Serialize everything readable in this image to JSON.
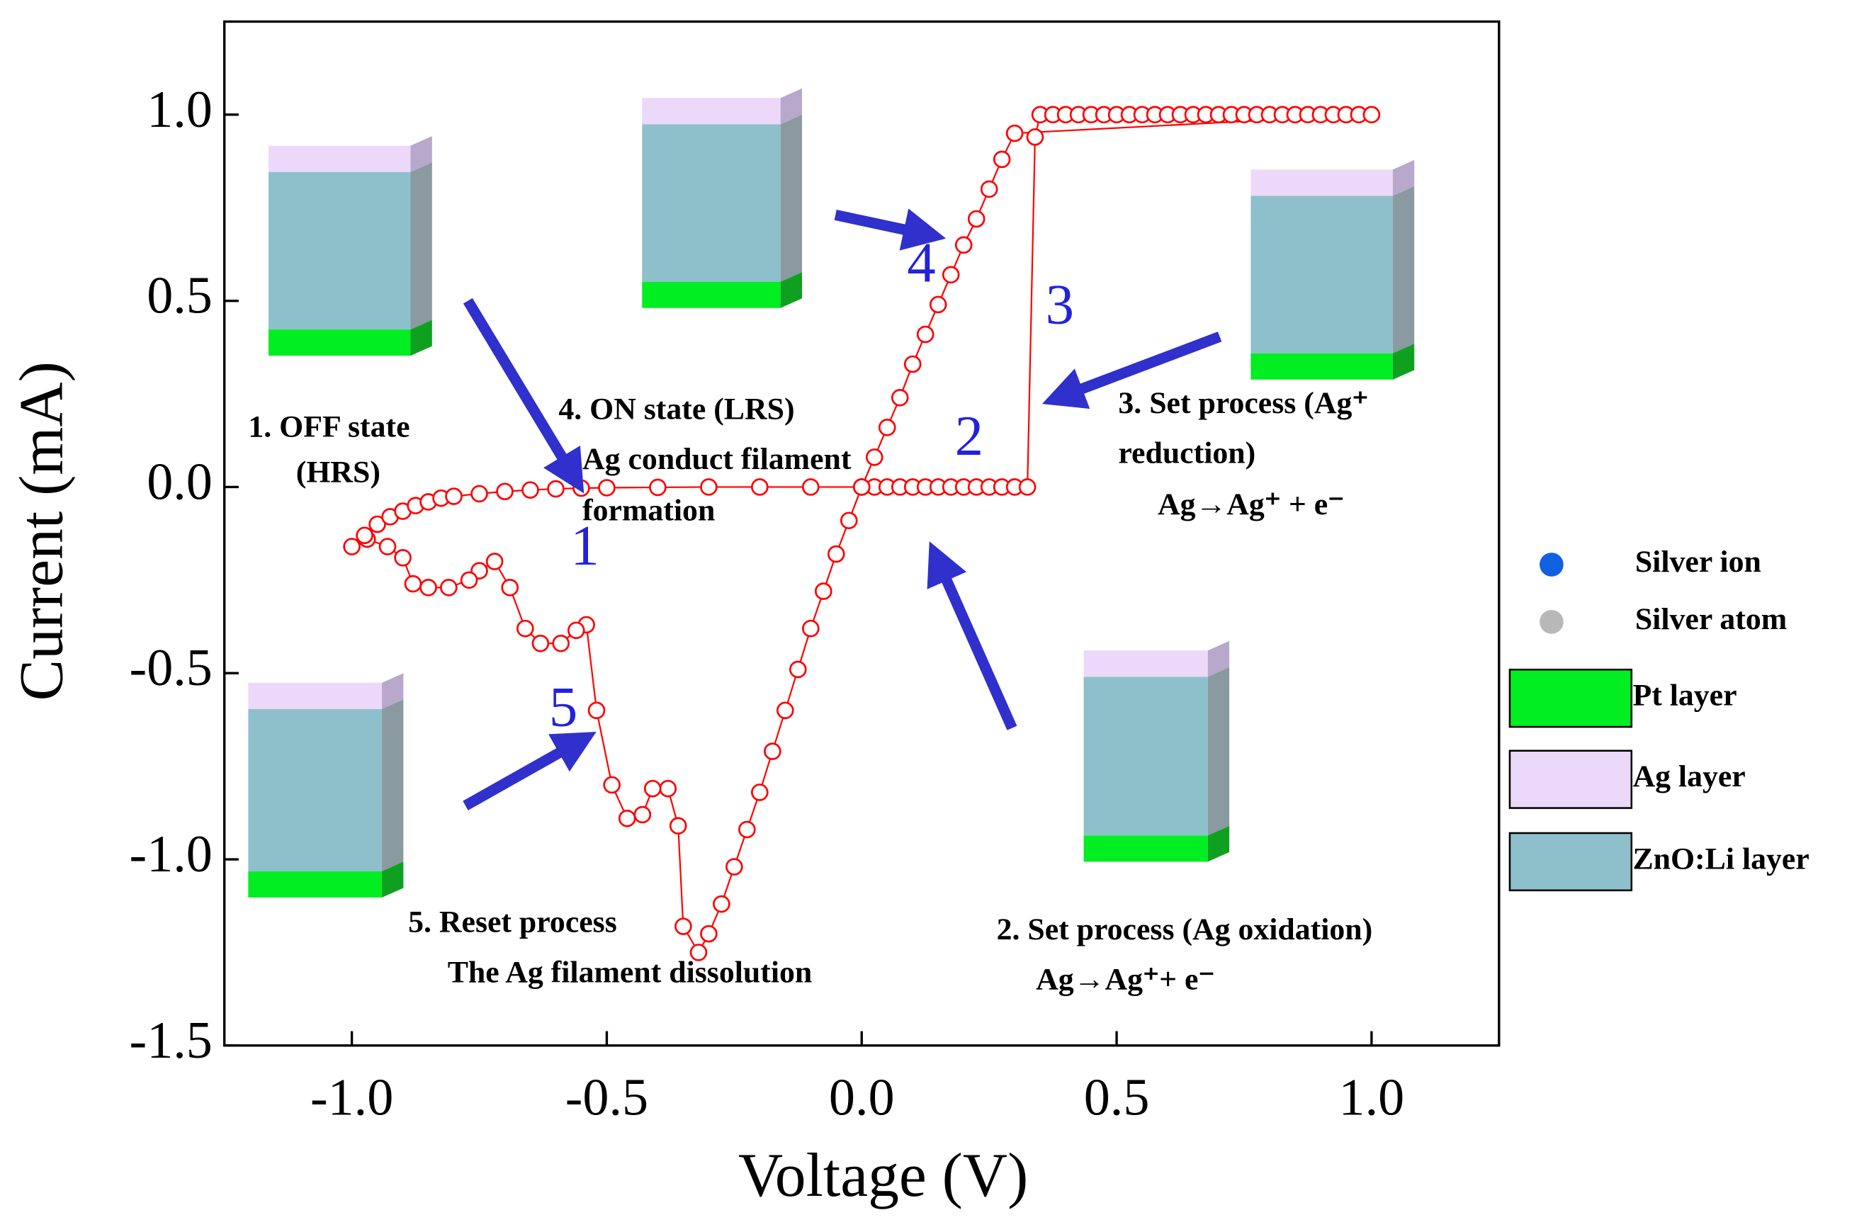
{
  "chart_data": {
    "type": "line",
    "xlabel": "Voltage (V)",
    "ylabel": "Current (mA)",
    "xlim": [
      -1.25,
      1.25
    ],
    "ylim": [
      -1.5,
      1.25
    ],
    "xticks": [
      {
        "value": -1,
        "label": "-1.0"
      },
      {
        "value": -0.5,
        "label": "-0.5"
      },
      {
        "value": 0,
        "label": "0.0"
      },
      {
        "value": 0.5,
        "label": "0.5"
      },
      {
        "value": 1,
        "label": "1.0"
      }
    ],
    "yticks": [
      {
        "value": -1.5,
        "label": "-1.5"
      },
      {
        "value": -1,
        "label": "-1.0"
      },
      {
        "value": -0.5,
        "label": "-0.5"
      },
      {
        "value": 0,
        "label": "0.0"
      },
      {
        "value": 0.5,
        "label": "0.5"
      },
      {
        "value": 1,
        "label": "1.0"
      }
    ],
    "x": [
      0,
      0.025,
      0.05,
      0.075,
      0.1,
      0.125,
      0.15,
      0.175,
      0.2,
      0.225,
      0.25,
      0.275,
      0.3,
      0.325,
      0.34,
      0.35,
      0.375,
      0.4,
      0.425,
      0.45,
      0.475,
      0.5,
      0.525,
      0.55,
      0.575,
      0.6,
      0.625,
      0.65,
      0.675,
      0.7,
      0.725,
      0.75,
      0.775,
      0.8,
      0.825,
      0.85,
      0.875,
      0.9,
      0.925,
      0.95,
      0.975,
      1.0,
      0.3,
      0.275,
      0.25,
      0.225,
      0.2,
      0.175,
      0.15,
      0.125,
      0.1,
      0.075,
      0.05,
      0.025,
      0,
      -0.025,
      -0.05,
      -0.075,
      -0.1,
      -0.125,
      -0.15,
      -0.175,
      -0.2,
      -0.225,
      -0.25,
      -0.275,
      -0.3,
      -0.32,
      -0.35,
      -0.36,
      -0.38,
      -0.41,
      -0.43,
      -0.46,
      -0.49,
      -0.52,
      -0.54,
      -0.56,
      -0.59,
      -0.63,
      -0.66,
      -0.69,
      -0.72,
      -0.75,
      -0.77,
      -0.81,
      -0.85,
      -0.88,
      -0.9,
      -0.93,
      -0.97,
      -1.0,
      -0.975,
      -0.95,
      -0.925,
      -0.9,
      -0.875,
      -0.85,
      -0.825,
      -0.8,
      -0.75,
      -0.7,
      -0.65,
      -0.6,
      -0.55,
      -0.5,
      -0.4,
      -0.3,
      -0.2,
      -0.1,
      0
    ],
    "series": [
      {
        "color": "#ff0000",
        "values": [
          0,
          0,
          0,
          0,
          0,
          0,
          0,
          0,
          0,
          0,
          0,
          0,
          0,
          0,
          0.94,
          1,
          1,
          1,
          1,
          1,
          1,
          1,
          1,
          1,
          1,
          1,
          1,
          1,
          1,
          1,
          1,
          1,
          1,
          1,
          1,
          1,
          1,
          1,
          1,
          1,
          1,
          1,
          0.95,
          0.88,
          0.8,
          0.72,
          0.65,
          0.57,
          0.49,
          0.41,
          0.33,
          0.24,
          0.16,
          0.08,
          0,
          -0.09,
          -0.18,
          -0.28,
          -0.38,
          -0.49,
          -0.6,
          -0.71,
          -0.82,
          -0.92,
          -1.02,
          -1.12,
          -1.2,
          -1.25,
          -1.18,
          -0.91,
          -0.81,
          -0.81,
          -0.88,
          -0.89,
          -0.8,
          -0.6,
          -0.37,
          -0.385,
          -0.42,
          -0.42,
          -0.38,
          -0.27,
          -0.2,
          -0.225,
          -0.25,
          -0.27,
          -0.27,
          -0.26,
          -0.19,
          -0.16,
          -0.14,
          -0.16,
          -0.13,
          -0.1,
          -0.08,
          -0.065,
          -0.05,
          -0.04,
          -0.03,
          -0.025,
          -0.018,
          -0.012,
          -0.008,
          -0.005,
          -0.003,
          -0.002,
          -0.001,
          0,
          0,
          0,
          0
        ]
      }
    ],
    "annotations": [
      "1. OFF state",
      "(HRS)",
      "4. ON state (LRS)",
      "Ag conduct filament",
      "formation",
      "3.  Set  process  (Ag⁺",
      "reduction)",
      "Ag→Ag⁺ + e⁻",
      "2. Set process (Ag oxidation)",
      "Ag→Ag⁺+ e⁻",
      "5. Reset process",
      "The Ag filament dissolution"
    ],
    "step_labels": [
      "1",
      "2",
      "3",
      "4",
      "5"
    ],
    "legend_items": [
      {
        "label": "Silver ion",
        "color": "#1060e0"
      },
      {
        "label": "Silver atom",
        "color": "#b8b8b8"
      },
      {
        "label": "Pt layer",
        "color": "#00ee22"
      },
      {
        "label": "Ag layer",
        "color": "#ecd8f8"
      },
      {
        "label": "ZnO:Li layer",
        "color": "#8ec0cc"
      }
    ]
  }
}
